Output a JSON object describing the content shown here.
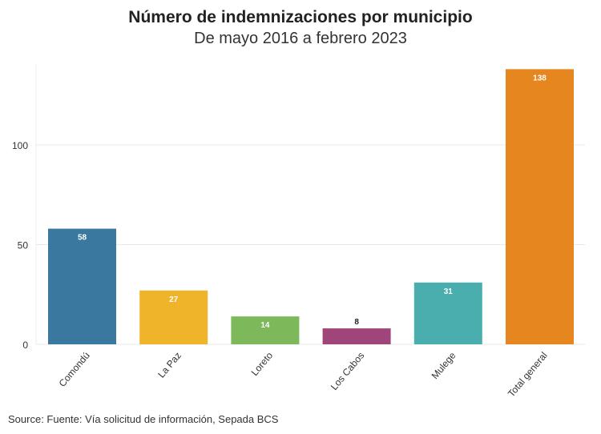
{
  "chart_data": {
    "type": "bar",
    "title": "Número de indemnizaciones por municipio",
    "subtitle": "De mayo 2016 a febrero 2023",
    "categories": [
      "Comondú",
      "La Paz",
      "Loreto",
      "Los Cabos",
      "Mulege",
      "Total general"
    ],
    "values": [
      58,
      27,
      14,
      8,
      31,
      138
    ],
    "colors": [
      "#3a78a0",
      "#f0b42a",
      "#7db85a",
      "#a0457a",
      "#4aaeae",
      "#e5861f"
    ],
    "yticks": [
      0,
      50,
      100
    ],
    "ylim": [
      0,
      140
    ],
    "grid": true,
    "xlabel": "",
    "ylabel": "",
    "source": "Source: Fuente: Vía solicitud de información, Sepada BCS"
  }
}
